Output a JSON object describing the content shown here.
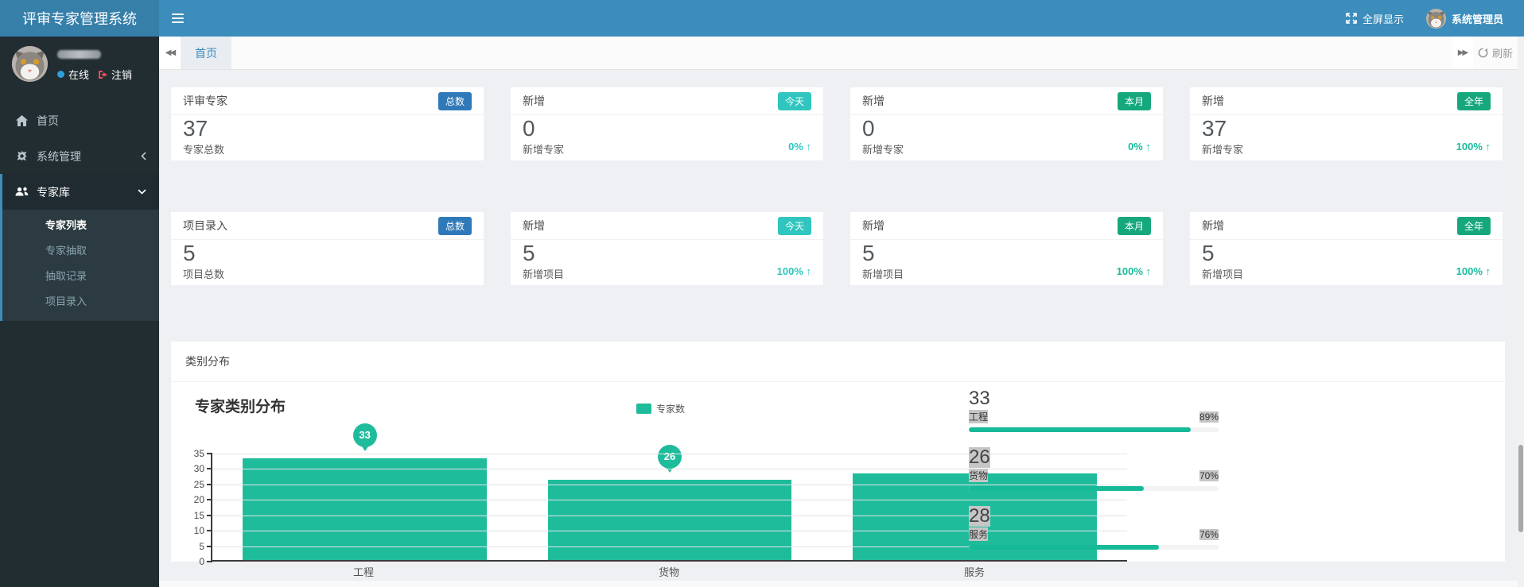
{
  "app": {
    "title": "评审专家管理系统"
  },
  "topbar": {
    "fullscreen_label": "全屏显示",
    "user_name": "系统管理员"
  },
  "sidebar": {
    "user": {
      "status_label": "在线",
      "logout_label": "注销"
    },
    "menu": [
      {
        "label": "首页"
      },
      {
        "label": "系统管理"
      },
      {
        "label": "专家库",
        "children": [
          {
            "label": "专家列表",
            "active": true
          },
          {
            "label": "专家抽取",
            "active": false
          },
          {
            "label": "抽取记录",
            "active": false
          },
          {
            "label": "项目录入",
            "active": false
          }
        ]
      }
    ]
  },
  "tabs": {
    "active_tab": "首页",
    "refresh_label": "刷新"
  },
  "stat_cards": {
    "row1": [
      {
        "title": "评审专家",
        "badge": "总数",
        "badge_color": "#2f79b9",
        "value": "37",
        "label": "专家总数",
        "percent": ""
      },
      {
        "title": "新增",
        "badge": "今天",
        "badge_color": "#30c6bf",
        "value": "0",
        "label": "新增专家",
        "percent": "0%",
        "percent_color": "#30c6bf"
      },
      {
        "title": "新增",
        "badge": "本月",
        "badge_color": "#16a87c",
        "value": "0",
        "label": "新增专家",
        "percent": "0%",
        "percent_color": "#18bc9c"
      },
      {
        "title": "新增",
        "badge": "全年",
        "badge_color": "#16a87c",
        "value": "37",
        "label": "新增专家",
        "percent": "100%",
        "percent_color": "#18bc9c"
      }
    ],
    "row2": [
      {
        "title": "项目录入",
        "badge": "总数",
        "badge_color": "#2f79b9",
        "value": "5",
        "label": "项目总数",
        "percent": ""
      },
      {
        "title": "新增",
        "badge": "今天",
        "badge_color": "#30c6bf",
        "value": "5",
        "label": "新增项目",
        "percent": "100%",
        "percent_color": "#30c6bf"
      },
      {
        "title": "新增",
        "badge": "本月",
        "badge_color": "#16a87c",
        "value": "5",
        "label": "新增项目",
        "percent": "100%",
        "percent_color": "#18bc9c"
      },
      {
        "title": "新增",
        "badge": "全年",
        "badge_color": "#16a87c",
        "value": "5",
        "label": "新增项目",
        "percent": "100%",
        "percent_color": "#18bc9c"
      }
    ]
  },
  "panel": {
    "title": "类别分布"
  },
  "chart_data": {
    "type": "bar",
    "title": "专家类别分布",
    "legend": [
      "专家数"
    ],
    "legend_position": "top-center",
    "categories": [
      "工程",
      "货物",
      "服务"
    ],
    "values": [
      33,
      26,
      28
    ],
    "balloons": [
      {
        "bar": 0,
        "label": "33"
      },
      {
        "bar": 1,
        "label": "26"
      }
    ],
    "ylim": [
      0,
      35
    ],
    "yticks": [
      0,
      5,
      10,
      15,
      20,
      25,
      30,
      35
    ],
    "grid": true,
    "bar_color": "#1fbc9c"
  },
  "stats": [
    {
      "value": "33",
      "label": "工程",
      "percent": "89%",
      "value_highlight": false
    },
    {
      "value": "26",
      "label": "货物",
      "percent": "70%",
      "value_highlight": true
    },
    {
      "value": "28",
      "label": "服务",
      "percent": "76%",
      "value_highlight": true
    }
  ],
  "colors": {
    "header": "#3c8dbc",
    "logo": "#367fa9",
    "sidebar": "#222d32",
    "progress_fill": "#16b998",
    "online_dot": "#2d9fd8",
    "logout_red": "#e0505e"
  }
}
